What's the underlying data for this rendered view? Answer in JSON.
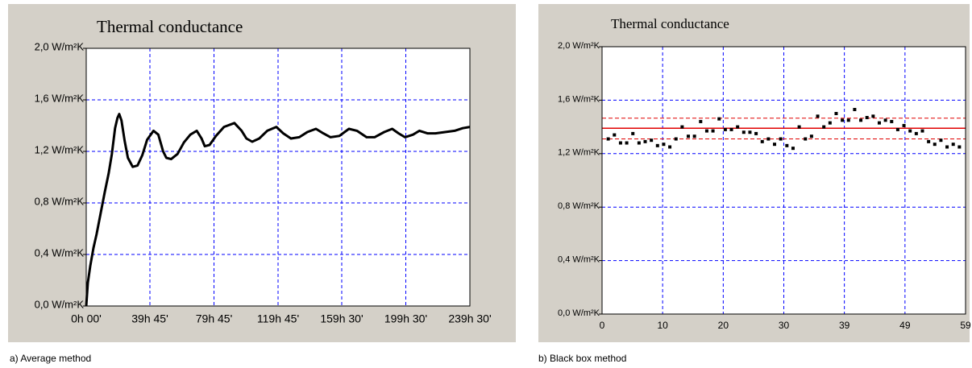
{
  "chart_data": [
    {
      "type": "line",
      "title": "Thermal conductance",
      "caption": "a) Average method",
      "x": [
        0,
        1,
        2.5,
        4.5,
        6.5,
        9,
        11.5,
        14,
        16,
        18,
        19.5,
        20.6,
        22,
        24,
        26,
        29,
        32,
        35,
        38,
        42,
        45,
        48,
        50,
        53,
        57,
        61,
        65,
        69,
        72,
        74,
        77,
        81,
        86,
        92.5,
        97,
        100,
        103.6,
        108,
        113,
        118.7,
        123,
        127.8,
        133,
        138,
        143.4,
        148,
        152.5,
        158,
        164,
        169,
        175,
        180,
        186,
        191,
        195,
        199,
        204,
        208,
        213,
        218,
        224,
        230,
        235,
        239.5
      ],
      "values": [
        0,
        0.18,
        0.31,
        0.45,
        0.56,
        0.72,
        0.88,
        1.03,
        1.18,
        1.38,
        1.46,
        1.49,
        1.44,
        1.28,
        1.15,
        1.08,
        1.09,
        1.17,
        1.29,
        1.36,
        1.33,
        1.2,
        1.15,
        1.14,
        1.18,
        1.27,
        1.33,
        1.36,
        1.3,
        1.24,
        1.25,
        1.32,
        1.39,
        1.42,
        1.36,
        1.3,
        1.275,
        1.3,
        1.36,
        1.39,
        1.34,
        1.3,
        1.31,
        1.35,
        1.375,
        1.34,
        1.31,
        1.32,
        1.375,
        1.36,
        1.31,
        1.31,
        1.35,
        1.375,
        1.34,
        1.31,
        1.33,
        1.36,
        1.34,
        1.34,
        1.35,
        1.36,
        1.38,
        1.39
      ],
      "color": "#000000",
      "xlim": [
        0,
        239.5
      ],
      "xticks": [
        {
          "value": 0,
          "label": "0h 00'"
        },
        {
          "value": 39.75,
          "label": "39h 45'"
        },
        {
          "value": 79.75,
          "label": "79h 45'"
        },
        {
          "value": 119.75,
          "label": "119h 45'"
        },
        {
          "value": 159.5,
          "label": "159h 30'"
        },
        {
          "value": 199.5,
          "label": "199h 30'"
        },
        {
          "value": 239.5,
          "label": "239h 30'"
        }
      ],
      "ylim": [
        0,
        2
      ],
      "yticks": [
        {
          "value": 0,
          "label": "0,0 W/m²K"
        },
        {
          "value": 0.4,
          "label": "0,4 W/m²K"
        },
        {
          "value": 0.8,
          "label": "0,8 W/m²K"
        },
        {
          "value": 1.2,
          "label": "1,2 W/m²K"
        },
        {
          "value": 1.6,
          "label": "1,6 W/m²K"
        },
        {
          "value": 2.0,
          "label": "2,0 W/m²K"
        }
      ],
      "grid": true,
      "grid_color": "#0000ff"
    },
    {
      "type": "scatter",
      "title": "Thermal conductance",
      "caption": "b) Black box method",
      "x": [
        1,
        2,
        3,
        4,
        5,
        6,
        7,
        8,
        9,
        10,
        11,
        12,
        13,
        14,
        15,
        16,
        17,
        18,
        19,
        20,
        21,
        22,
        23,
        24,
        25,
        26,
        27,
        28,
        29,
        30,
        31,
        32,
        33,
        34,
        35,
        36,
        37,
        38,
        39,
        40,
        41,
        42,
        43,
        44,
        45,
        46,
        47,
        48,
        49,
        50,
        51,
        52,
        53,
        54,
        55,
        56,
        57,
        58
      ],
      "values": [
        1.31,
        1.34,
        1.28,
        1.28,
        1.35,
        1.28,
        1.29,
        1.3,
        1.26,
        1.27,
        1.25,
        1.31,
        1.4,
        1.33,
        1.33,
        1.44,
        1.37,
        1.37,
        1.46,
        1.38,
        1.38,
        1.4,
        1.36,
        1.36,
        1.35,
        1.29,
        1.31,
        1.27,
        1.31,
        1.26,
        1.24,
        1.4,
        1.31,
        1.33,
        1.48,
        1.4,
        1.43,
        1.5,
        1.45,
        1.45,
        1.53,
        1.45,
        1.47,
        1.48,
        1.43,
        1.45,
        1.44,
        1.38,
        1.41,
        1.37,
        1.35,
        1.37,
        1.29,
        1.27,
        1.3,
        1.25,
        1.27,
        1.25
      ],
      "color": "#000000",
      "reference_lines": [
        {
          "value": 1.39,
          "style": "solid"
        },
        {
          "value": 1.465,
          "style": "dashed"
        },
        {
          "value": 1.31,
          "style": "dashed"
        }
      ],
      "reference_color": "#e00000",
      "xlim": [
        0,
        59
      ],
      "xticks": [
        0,
        {
          "value": 9.83,
          "label": "10"
        },
        {
          "value": 19.67,
          "label": "20"
        },
        {
          "value": 29.5,
          "label": "30"
        },
        {
          "value": 39.33,
          "label": "39"
        },
        {
          "value": 49.17,
          "label": "49"
        },
        59
      ],
      "ylim": [
        0,
        2
      ],
      "yticks": [
        {
          "value": 0,
          "label": "0,0 W/m²K"
        },
        {
          "value": 0.4,
          "label": "0,4 W/m²K"
        },
        {
          "value": 0.8,
          "label": "0,8 W/m²K"
        },
        {
          "value": 1.2,
          "label": "1,2 W/m²K"
        },
        {
          "value": 1.6,
          "label": "1,6 W/m²K"
        },
        {
          "value": 2.0,
          "label": "2,0 W/m²K"
        }
      ],
      "grid": true,
      "grid_color": "#0000ff"
    }
  ]
}
